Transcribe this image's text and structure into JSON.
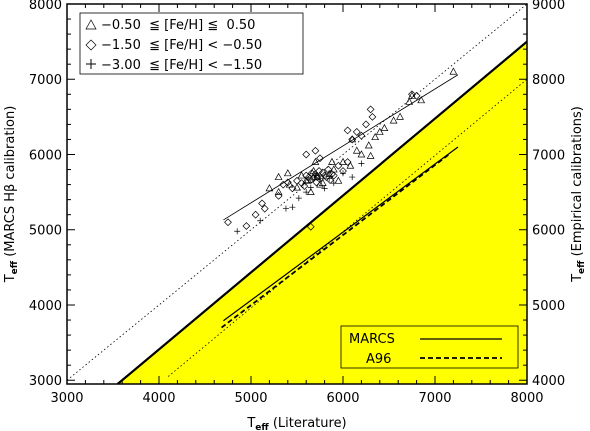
{
  "chart_data": {
    "type": "scatter",
    "x_axis": {
      "label": "T",
      "label_sub": "eff",
      "label_rest": " (Literature)",
      "lim": [
        3000,
        8000
      ],
      "ticks": [
        "3000",
        "4000",
        "5000",
        "6000",
        "7000",
        "8000"
      ]
    },
    "y_axis_left": {
      "label": "T",
      "label_sub": "eff",
      "label_rest": " (MARCS Hβ calibration)",
      "lim": [
        2950,
        8000
      ],
      "ticks": [
        "3000",
        "4000",
        "5000",
        "6000",
        "7000",
        "8000"
      ]
    },
    "y_axis_right": {
      "label": "T",
      "label_sub": "eff",
      "label_rest": " (Empirical calibrations)",
      "lim": [
        3950,
        9000
      ],
      "ticks": [
        "4000",
        "5000",
        "6000",
        "7000",
        "8000",
        "9000"
      ]
    },
    "shaded_region_color": "#ffff00",
    "legend_top_left": [
      {
        "symbol": "triangle",
        "text": "−0.50  ≦ [Fe/H] ≦  0.50"
      },
      {
        "symbol": "diamond",
        "text": "−1.50  ≦ [Fe/H] < −0.50"
      },
      {
        "symbol": "plus",
        "text": "−3.00  ≦ [Fe/H] < −1.50"
      }
    ],
    "legend_bottom_right": [
      {
        "name": "MARCS",
        "style": "solid"
      },
      {
        "name": "A96",
        "style": "dashed"
      }
    ],
    "reference_lines": {
      "one_to_one_left": [
        [
          3000,
          3000
        ],
        [
          8000,
          8000
        ]
      ],
      "one_to_one_right": [
        [
          4100,
          3050
        ],
        [
          8000,
          7000
        ]
      ],
      "thick_boundary": [
        [
          3550,
          2950
        ],
        [
          8000,
          7500
        ]
      ]
    },
    "fit_lines": {
      "upper_fit": [
        [
          4700,
          5130
        ],
        [
          7250,
          7060
        ]
      ],
      "marcs": [
        [
          4700,
          3790
        ],
        [
          7250,
          6100
        ]
      ],
      "a96": [
        [
          4680,
          3700
        ],
        [
          7150,
          6000
        ]
      ]
    },
    "series": [
      {
        "name": "triangle",
        "marker": "triangle",
        "points": [
          [
            5200,
            5550
          ],
          [
            5300,
            5500
          ],
          [
            5420,
            5600
          ],
          [
            5500,
            5560
          ],
          [
            5550,
            5720
          ],
          [
            5620,
            5660
          ],
          [
            5680,
            5780
          ],
          [
            5720,
            5700
          ],
          [
            5780,
            5620
          ],
          [
            5850,
            5740
          ],
          [
            5900,
            5800
          ],
          [
            5950,
            5650
          ],
          [
            6000,
            5900
          ],
          [
            6080,
            5850
          ],
          [
            6150,
            6050
          ],
          [
            6200,
            6000
          ],
          [
            6280,
            6120
          ],
          [
            6350,
            6230
          ],
          [
            6400,
            6300
          ],
          [
            6450,
            6350
          ],
          [
            6550,
            6450
          ],
          [
            6620,
            6500
          ],
          [
            6720,
            6700
          ],
          [
            6750,
            6780
          ],
          [
            6850,
            6720
          ],
          [
            7200,
            7100
          ],
          [
            5750,
            5600
          ],
          [
            5600,
            5650
          ],
          [
            5880,
            5900
          ],
          [
            6100,
            6200
          ],
          [
            5300,
            5700
          ],
          [
            5650,
            5500
          ],
          [
            6300,
            5980
          ],
          [
            5400,
            5750
          ],
          [
            5700,
            5900
          ]
        ]
      },
      {
        "name": "diamond",
        "marker": "diamond",
        "points": [
          [
            4750,
            5100
          ],
          [
            4950,
            5050
          ],
          [
            5050,
            5200
          ],
          [
            5120,
            5350
          ],
          [
            5150,
            5280
          ],
          [
            5300,
            5450
          ],
          [
            5350,
            5600
          ],
          [
            5400,
            5630
          ],
          [
            5450,
            5550
          ],
          [
            5500,
            5650
          ],
          [
            5550,
            5620
          ],
          [
            5580,
            5580
          ],
          [
            5600,
            5720
          ],
          [
            5630,
            5700
          ],
          [
            5650,
            5660
          ],
          [
            5660,
            5750
          ],
          [
            5680,
            5690
          ],
          [
            5700,
            5740
          ],
          [
            5710,
            5630
          ],
          [
            5720,
            5700
          ],
          [
            5740,
            5780
          ],
          [
            5760,
            5690
          ],
          [
            5780,
            5760
          ],
          [
            5800,
            5720
          ],
          [
            5820,
            5700
          ],
          [
            5840,
            5800
          ],
          [
            5860,
            5660
          ],
          [
            5880,
            5740
          ],
          [
            5900,
            5720
          ],
          [
            5950,
            5850
          ],
          [
            6000,
            5780
          ],
          [
            6050,
            5900
          ],
          [
            6100,
            6200
          ],
          [
            6150,
            6300
          ],
          [
            6200,
            6250
          ],
          [
            6250,
            6400
          ],
          [
            6300,
            6600
          ],
          [
            6320,
            6500
          ],
          [
            6050,
            6320
          ],
          [
            5650,
            5040
          ],
          [
            6750,
            6800
          ],
          [
            6800,
            6780
          ],
          [
            5600,
            6000
          ],
          [
            5750,
            5950
          ],
          [
            5700,
            6050
          ]
        ]
      },
      {
        "name": "plus",
        "marker": "plus",
        "points": [
          [
            4850,
            4980
          ],
          [
            5100,
            5120
          ],
          [
            5380,
            5280
          ],
          [
            5450,
            5300
          ],
          [
            5520,
            5420
          ],
          [
            5600,
            5500
          ],
          [
            5650,
            5560
          ],
          [
            5700,
            5720
          ],
          [
            5750,
            5680
          ],
          [
            5800,
            5550
          ],
          [
            5900,
            5620
          ],
          [
            6000,
            5750
          ],
          [
            6100,
            5700
          ],
          [
            5850,
            5680
          ],
          [
            6200,
            5880
          ]
        ]
      }
    ]
  }
}
